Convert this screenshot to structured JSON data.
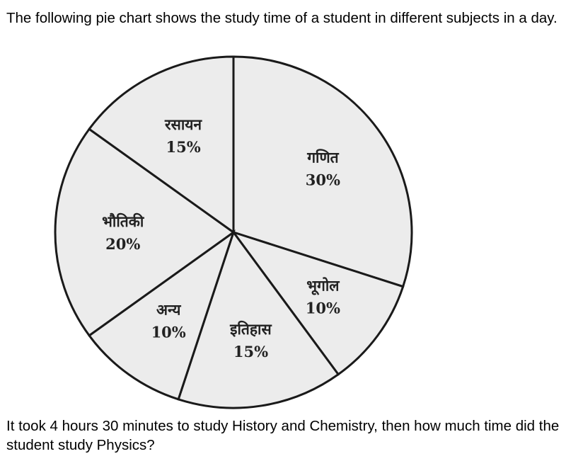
{
  "question_intro": "The following pie chart shows the study time of a student in different subjects in a day.",
  "question_text": "It took 4 hours 30 minutes to study History and Chemistry, then how much time did the student study Physics?",
  "chart_data": {
    "type": "pie",
    "start": "top",
    "direction": "clockwise",
    "slices": [
      {
        "label": "गणित",
        "value": 30,
        "value_label": "30%"
      },
      {
        "label": "भूगोल",
        "value": 10,
        "value_label": "10%"
      },
      {
        "label": "इतिहास",
        "value": 15,
        "value_label": "15%"
      },
      {
        "label": "अन्य",
        "value": 10,
        "value_label": "10%"
      },
      {
        "label": "भौतिकी",
        "value": 20,
        "value_label": "20%"
      },
      {
        "label": "रसायन",
        "value": 15,
        "value_label": "15%"
      }
    ],
    "colors": {
      "fill": "#ececec",
      "stroke": "#1a1a1a"
    }
  }
}
